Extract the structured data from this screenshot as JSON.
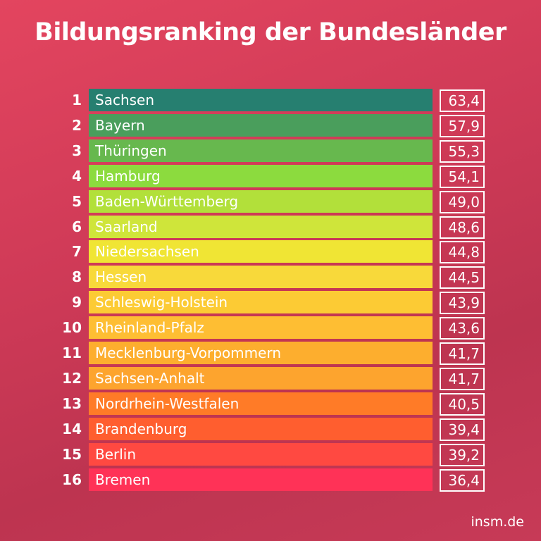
{
  "title": "Bildungsranking der Bundesländer",
  "source": "insm.de",
  "chart_data": {
    "type": "table",
    "title": "Bildungsranking der Bundesländer",
    "rows": [
      {
        "rank": "1",
        "name": "Sachsen",
        "value": "63,4",
        "color": "#267F70"
      },
      {
        "rank": "2",
        "name": "Bayern",
        "value": "57,9",
        "color": "#4A9E5C"
      },
      {
        "rank": "3",
        "name": "Thüringen",
        "value": "55,3",
        "color": "#67B84E"
      },
      {
        "rank": "4",
        "name": "Hamburg",
        "value": "54,1",
        "color": "#8CDB3E"
      },
      {
        "rank": "5",
        "name": "Baden-Württemberg",
        "value": "49,0",
        "color": "#B2E03A"
      },
      {
        "rank": "6",
        "name": "Saarland",
        "value": "48,6",
        "color": "#CFE53A"
      },
      {
        "rank": "7",
        "name": "Niedersachsen",
        "value": "44,8",
        "color": "#F0E534"
      },
      {
        "rank": "8",
        "name": "Hessen",
        "value": "44,5",
        "color": "#F8D93A"
      },
      {
        "rank": "9",
        "name": "Schleswig-Holstein",
        "value": "43,9",
        "color": "#FCCB34"
      },
      {
        "rank": "10",
        "name": "Rheinland-Pfalz",
        "value": "43,6",
        "color": "#FEBE33"
      },
      {
        "rank": "11",
        "name": "Mecklenburg-Vorpommern",
        "value": "41,7",
        "color": "#FDAE2E"
      },
      {
        "rank": "12",
        "name": "Sachsen-Anhalt",
        "value": "41,7",
        "color": "#FDA42E"
      },
      {
        "rank": "13",
        "name": "Nordrhein-Westfalen",
        "value": "40,5",
        "color": "#FF7B27"
      },
      {
        "rank": "14",
        "name": "Brandenburg",
        "value": "39,4",
        "color": "#FF5E2F"
      },
      {
        "rank": "15",
        "name": "Berlin",
        "value": "39,2",
        "color": "#FF4941"
      },
      {
        "rank": "16",
        "name": "Bremen",
        "value": "36,4",
        "color": "#FF3257"
      }
    ]
  }
}
